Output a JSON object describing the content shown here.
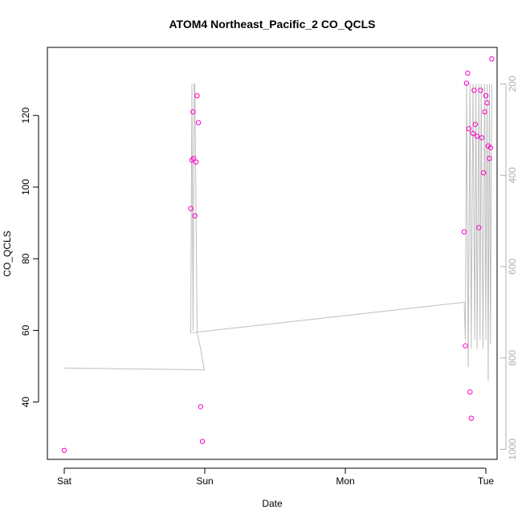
{
  "chart_data": {
    "type": "scatter",
    "title": "ATOM4 Northeast_Pacific_2 CO_QCLS",
    "xlabel": "Date",
    "ylabel": "CO_QCLS",
    "x_ticks": [
      "Sat",
      "Sun",
      "Mon",
      "Tue"
    ],
    "xlim": [
      "Sat 00:00",
      "Tue 00:00"
    ],
    "ylim": [
      24,
      139
    ],
    "y_ticks": [
      40,
      60,
      80,
      100,
      120
    ],
    "grid": false,
    "points_color": "#ff00c8",
    "line_color": "#bebebe",
    "right_axis": {
      "label": "",
      "reversed": true,
      "ticks": [
        200,
        400,
        600,
        800,
        1000
      ],
      "lim": [
        1022,
        120
      ],
      "color": "#b0b0b0"
    },
    "series": [
      {
        "kind": "points",
        "x_hours": [
          0.0,
          21.6,
          21.8,
          22.0,
          22.1,
          22.3,
          22.5,
          22.7,
          22.9,
          23.3,
          23.6,
          68.3,
          68.5,
          68.7,
          68.9,
          69.1,
          69.3,
          69.5,
          69.8,
          70.0,
          70.2,
          70.5,
          70.8,
          71.1,
          71.3,
          71.6,
          71.8,
          72.0,
          72.2,
          72.4,
          72.6,
          72.8,
          73.0
        ],
        "y": [
          26.5,
          94.0,
          107.5,
          121.0,
          108.0,
          92.0,
          107.0,
          125.5,
          118.0,
          38.7,
          29.0,
          87.5,
          55.7,
          129.0,
          131.8,
          116.3,
          42.8,
          35.5,
          115.0,
          127.0,
          117.5,
          114.2,
          88.7,
          127.0,
          113.8,
          104.0,
          121.0,
          125.5,
          123.5,
          111.5,
          108.0,
          111.0,
          135.8
        ]
      },
      {
        "kind": "line",
        "axis": "right",
        "x_hours": [
          0.0,
          23.9,
          23.3,
          22.7,
          22.3,
          22.2,
          22.0,
          21.8,
          21.6,
          68.3,
          68.5,
          68.7,
          69.0,
          69.3,
          69.5,
          69.8,
          70.1,
          70.3,
          70.5,
          70.8,
          71.0,
          71.2,
          71.5,
          71.8,
          72.0,
          72.2,
          72.4,
          72.6,
          72.8,
          73.0
        ],
        "y": [
          822,
          826,
          780,
          745,
          200,
          200,
          740,
          200,
          745,
          678,
          760,
          200,
          820,
          200,
          780,
          200,
          760,
          200,
          780,
          200,
          760,
          200,
          780,
          200,
          760,
          200,
          850,
          200,
          770,
          200
        ]
      }
    ]
  }
}
